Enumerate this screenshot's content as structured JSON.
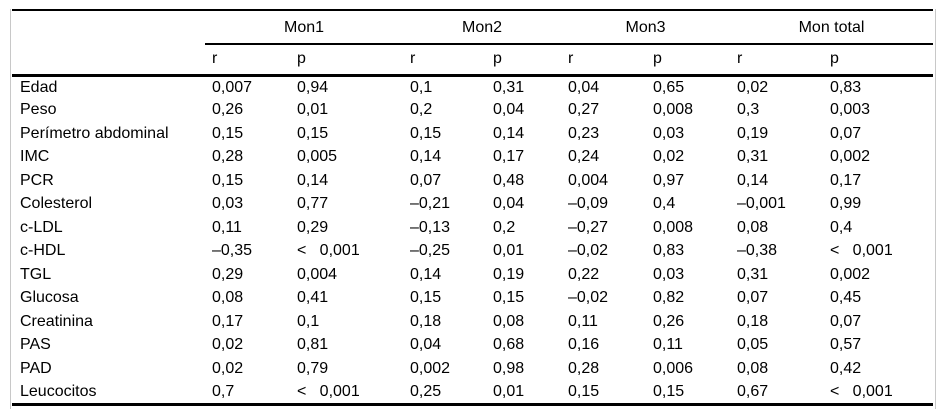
{
  "colors": {
    "background": "#ffffff",
    "rule": "#000000",
    "frame": "#c8c8c8",
    "text": "#000000"
  },
  "table": {
    "groups": [
      {
        "label": "Mon1"
      },
      {
        "label": "Mon2"
      },
      {
        "label": "Mon3"
      },
      {
        "label": "Mon total"
      }
    ],
    "subheaders": [
      "r",
      "p",
      "r",
      "p",
      "r",
      "p",
      "r",
      "p"
    ],
    "rows": [
      {
        "label": "Edad",
        "values": [
          "0,007",
          "0,94",
          "0,1",
          "0,31",
          "0,04",
          "0,65",
          "0,02",
          "0,83"
        ]
      },
      {
        "label": "Peso",
        "values": [
          "0,26",
          "0,01",
          "0,2",
          "0,04",
          "0,27",
          "0,008",
          "0,3",
          "0,003"
        ]
      },
      {
        "label": "Perímetro abdominal",
        "values": [
          "0,15",
          "0,15",
          "0,15",
          "0,14",
          "0,23",
          "0,03",
          "0,19",
          "0,07"
        ]
      },
      {
        "label": "IMC",
        "values": [
          "0,28",
          "0,005",
          "0,14",
          "0,17",
          "0,24",
          "0,02",
          "0,31",
          "0,002"
        ]
      },
      {
        "label": "PCR",
        "values": [
          "0,15",
          "0,14",
          "0,07",
          "0,48",
          "0,004",
          "0,97",
          "0,14",
          "0,17"
        ]
      },
      {
        "label": "Colesterol",
        "values": [
          "0,03",
          "0,77",
          "–0,21",
          "0,04",
          "–0,09",
          "0,4",
          "–0,001",
          "0,99"
        ]
      },
      {
        "label": "c-LDL",
        "values": [
          "0,11",
          "0,29",
          "–0,13",
          "0,2",
          "–0,27",
          "0,008",
          "0,08",
          "0,4"
        ]
      },
      {
        "label": "c-HDL",
        "values": [
          "–0,35",
          "<   0,001",
          "–0,25",
          "0,01",
          "–0,02",
          "0,83",
          "–0,38",
          "<   0,001"
        ]
      },
      {
        "label": "TGL",
        "values": [
          "0,29",
          "0,004",
          "0,14",
          "0,19",
          "0,22",
          "0,03",
          "0,31",
          "0,002"
        ]
      },
      {
        "label": "Glucosa",
        "values": [
          "0,08",
          "0,41",
          "0,15",
          "0,15",
          "–0,02",
          "0,82",
          "0,07",
          "0,45"
        ]
      },
      {
        "label": "Creatinina",
        "values": [
          "0,17",
          "0,1",
          "0,18",
          "0,08",
          "0,11",
          "0,26",
          "0,18",
          "0,07"
        ]
      },
      {
        "label": "PAS",
        "values": [
          "0,02",
          "0,81",
          "0,04",
          "0,68",
          "0,16",
          "0,11",
          "0,05",
          "0,57"
        ]
      },
      {
        "label": "PAD",
        "values": [
          "0,02",
          "0,79",
          "0,002",
          "0,98",
          "0,28",
          "0,006",
          "0,08",
          "0,42"
        ]
      },
      {
        "label": "Leucocitos",
        "values": [
          "0,7",
          "<   0,001",
          "0,25",
          "0,01",
          "0,15",
          "0,15",
          "0,67",
          "<   0,001"
        ]
      }
    ]
  }
}
